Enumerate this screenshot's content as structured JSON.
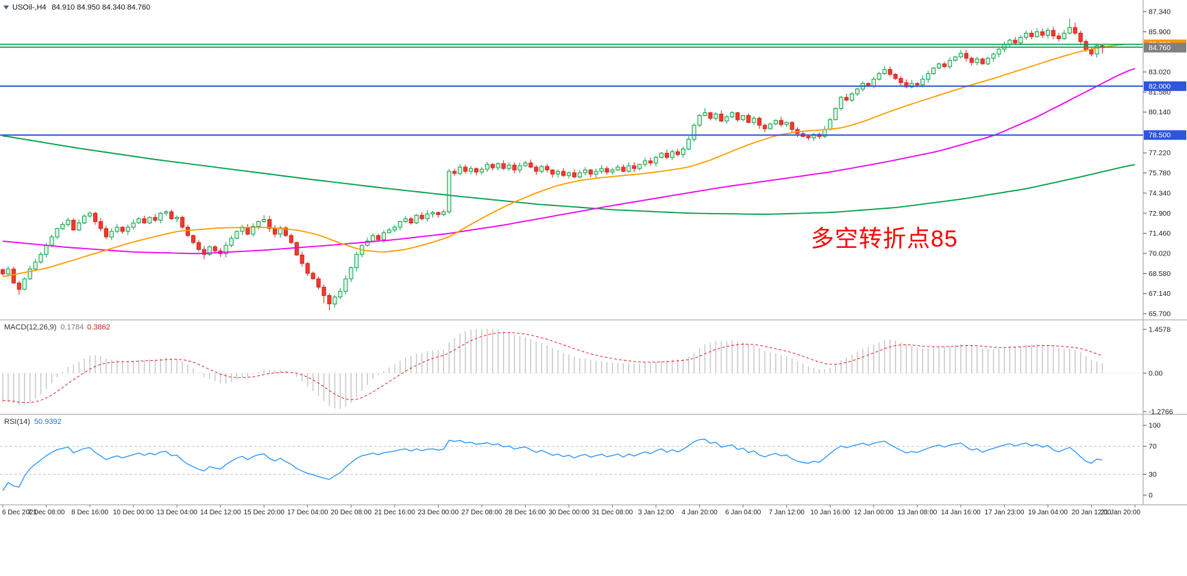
{
  "window": {
    "title_symbol": "USOil-,H4",
    "title_ohlc": "84.910 84.950 84.340 84.760"
  },
  "annotation": {
    "text": "多空转折点85",
    "color": "#ff0000"
  },
  "colors": {
    "bull": "#0aa048",
    "bull_fill": "#ddf5e6",
    "bear": "#d6221c",
    "bear_fill": "#ef3b2d",
    "ma_green": "#00a04a",
    "ma_magenta": "#f000f0",
    "ma_orange": "#ff9d00",
    "macd_hist": "#c4c4c4",
    "macd_signal": "#e02020",
    "rsi_line": "#1e90ff",
    "hline_green": "#00a04a",
    "hline_blue": "#2d55dd",
    "badge_orange": "#ff9500",
    "badge_gray": "#808080",
    "badge_blue": "#2d55dd"
  },
  "price_axis": {
    "ticks": [
      {
        "label": "87.340",
        "price": 87.34
      },
      {
        "label": "85.900",
        "price": 85.9
      },
      {
        "label": "83.020",
        "price": 83.02
      },
      {
        "label": "81.580",
        "price": 81.58
      },
      {
        "label": "80.140",
        "price": 80.14
      },
      {
        "label": "77.220",
        "price": 77.22
      },
      {
        "label": "75.780",
        "price": 75.78
      },
      {
        "label": "74.340",
        "price": 74.34
      },
      {
        "label": "72.900",
        "price": 72.9
      },
      {
        "label": "71.460",
        "price": 71.46
      },
      {
        "label": "70.020",
        "price": 70.02
      },
      {
        "label": "68.580",
        "price": 68.58
      },
      {
        "label": "67.140",
        "price": 67.14
      },
      {
        "label": "65.700",
        "price": 65.7
      }
    ],
    "badges": [
      {
        "text": "85.000",
        "price": 85.0,
        "bg": "#ff9500",
        "fg": "#ffffff"
      },
      {
        "text": "84.760",
        "price": 84.76,
        "bg": "#808080",
        "fg": "#ffffff"
      },
      {
        "text": "82.000",
        "price": 82.0,
        "bg": "#2d55dd",
        "fg": "#ffffff"
      },
      {
        "text": "78.500",
        "price": 78.5,
        "bg": "#2d55dd",
        "fg": "#ffffff"
      }
    ]
  },
  "time_axis": {
    "labels": [
      "6 Dec 2021",
      "7 Dec 08:00",
      "8 Dec 16:00",
      "10 Dec 00:00",
      "13 Dec 04:00",
      "14 Dec 12:00",
      "15 Dec 20:00",
      "17 Dec 04:00",
      "20 Dec 08:00",
      "21 Dec 16:00",
      "23 Dec 00:00",
      "27 Dec 08:00",
      "28 Dec 16:00",
      "30 Dec 00:00",
      "31 Dec 08:00",
      "3 Jan 12:00",
      "4 Jan 20:00",
      "6 Jan 04:00",
      "7 Jan 12:00",
      "10 Jan 16:00",
      "12 Jan 00:00",
      "13 Jan 08:00",
      "14 Jan 16:00",
      "17 Jan 23:00",
      "19 Jan 04:00",
      "20 Jan 12:00",
      "21 Jan 20:00"
    ]
  },
  "indicators": {
    "macd": {
      "label": "MACD(12,26,9)",
      "value_main": "0.1784",
      "value_signal": "0.3862",
      "axis": [
        {
          "label": "1.4578",
          "value": 1.4578
        },
        {
          "label": "0.00",
          "value": 0
        },
        {
          "label": "-1.2766",
          "value": -1.2766
        }
      ],
      "range": [
        -1.2766,
        1.4578
      ]
    },
    "rsi": {
      "label": "RSI(14)",
      "value": "50.9392",
      "axis": [
        {
          "label": "100",
          "value": 100
        },
        {
          "label": "70",
          "value": 70
        },
        {
          "label": "30",
          "value": 30
        },
        {
          "label": "0",
          "value": 0
        }
      ],
      "levels": [
        70,
        30
      ]
    }
  },
  "chart_data": {
    "type": "candlestick+indicators",
    "symbol": "USOil-",
    "timeframe": "H4",
    "current_bar": {
      "open": 84.91,
      "high": 84.95,
      "low": 84.34,
      "close": 84.76
    },
    "price_axis_range": [
      65.7,
      87.34
    ],
    "bars_total_slots": 210,
    "open_first": 68.85,
    "closes": [
      68.55,
      68.9,
      67.9,
      67.45,
      68.2,
      68.9,
      69.4,
      69.95,
      70.6,
      71.2,
      71.8,
      72.1,
      72.4,
      71.7,
      72.2,
      72.7,
      72.9,
      72.3,
      71.8,
      71.2,
      71.6,
      71.9,
      71.6,
      71.9,
      72.2,
      72.5,
      72.2,
      72.6,
      72.4,
      72.9,
      73.0,
      72.5,
      72.6,
      71.9,
      71.3,
      70.8,
      70.3,
      69.95,
      70.5,
      70.2,
      70.0,
      70.6,
      71.1,
      71.6,
      71.9,
      71.4,
      71.95,
      72.3,
      72.45,
      71.8,
      71.4,
      71.85,
      71.3,
      70.8,
      69.9,
      69.3,
      68.6,
      68.2,
      67.6,
      67.0,
      66.4,
      66.9,
      67.3,
      68.2,
      69.0,
      69.95,
      70.6,
      70.9,
      71.3,
      71.0,
      71.5,
      71.7,
      71.9,
      72.3,
      72.5,
      72.2,
      72.75,
      72.5,
      72.85,
      72.95,
      72.8,
      73.0,
      75.9,
      75.75,
      76.2,
      75.9,
      76.1,
      75.85,
      76.05,
      76.4,
      76.15,
      76.45,
      76.1,
      76.35,
      76.0,
      76.3,
      76.5,
      76.2,
      75.9,
      76.25,
      76.0,
      75.7,
      75.9,
      75.6,
      75.8,
      75.5,
      75.8,
      76.0,
      75.7,
      75.9,
      76.1,
      75.85,
      76.0,
      76.2,
      75.9,
      76.3,
      76.1,
      76.4,
      76.65,
      76.5,
      76.9,
      77.2,
      76.9,
      77.3,
      77.1,
      77.5,
      78.2,
      79.2,
      79.9,
      80.1,
      79.7,
      80.0,
      79.5,
      79.8,
      80.1,
      79.6,
      79.9,
      79.4,
      79.7,
      79.2,
      78.95,
      79.3,
      79.55,
      79.25,
      79.4,
      78.9,
      78.6,
      78.4,
      78.3,
      78.55,
      78.4,
      78.9,
      79.6,
      80.4,
      81.2,
      81.0,
      81.45,
      81.8,
      82.2,
      82.0,
      82.5,
      82.9,
      83.2,
      82.85,
      82.55,
      82.25,
      81.95,
      82.2,
      82.1,
      82.5,
      82.9,
      83.3,
      83.6,
      83.4,
      83.85,
      84.1,
      84.35,
      84.0,
      83.7,
      83.95,
      83.6,
      84.0,
      84.3,
      84.65,
      85.0,
      85.3,
      85.1,
      85.5,
      85.8,
      85.55,
      85.9,
      85.65,
      86.0,
      85.6,
      85.4,
      85.8,
      86.2,
      85.8,
      85.2,
      84.6,
      84.3,
      84.9,
      84.76
    ],
    "wick_overrides": {
      "3": {
        "l": 67.05
      },
      "37": {
        "l": 69.6
      },
      "48": {
        "h": 72.75
      },
      "59": {
        "l": 66.45
      },
      "60": {
        "l": 65.95
      },
      "61": {
        "l": 66.15
      },
      "82": {
        "h": 76.05,
        "l": 72.85
      },
      "127": {
        "h": 79.35
      },
      "129": {
        "h": 80.42
      },
      "162": {
        "h": 83.45
      },
      "190": {
        "h": 86.15
      },
      "196": {
        "h": 86.85
      },
      "197": {
        "h": 86.55
      },
      "202": {
        "h": 84.95,
        "l": 84.34
      }
    },
    "hlines": [
      {
        "price": 85.0,
        "color": "#00a04a",
        "width": 1.6
      },
      {
        "price": 84.8,
        "color": "#00a04a",
        "width": 1.6
      },
      {
        "price": 84.76,
        "color": "#9a9a9a",
        "width": 1,
        "dash": "2 2"
      },
      {
        "price": 82.0,
        "color": "#2d55dd",
        "width": 2
      },
      {
        "price": 78.5,
        "color": "#2d55dd",
        "width": 2
      }
    ],
    "ma_green": [
      [
        0,
        78.45
      ],
      [
        14,
        77.55
      ],
      [
        28,
        76.75
      ],
      [
        42,
        76.05
      ],
      [
        56,
        75.35
      ],
      [
        70,
        74.7
      ],
      [
        84,
        74.1
      ],
      [
        98,
        73.55
      ],
      [
        112,
        73.15
      ],
      [
        126,
        72.9
      ],
      [
        140,
        72.82
      ],
      [
        152,
        72.95
      ],
      [
        164,
        73.3
      ],
      [
        176,
        73.9
      ],
      [
        188,
        74.65
      ],
      [
        198,
        75.5
      ],
      [
        204,
        76.05
      ],
      [
        208,
        76.4
      ]
    ],
    "ma_magenta": [
      [
        0,
        70.9
      ],
      [
        12,
        70.45
      ],
      [
        24,
        70.12
      ],
      [
        36,
        70.0
      ],
      [
        48,
        70.25
      ],
      [
        60,
        70.6
      ],
      [
        72,
        71.0
      ],
      [
        82,
        71.45
      ],
      [
        92,
        72.05
      ],
      [
        102,
        72.75
      ],
      [
        112,
        73.45
      ],
      [
        122,
        74.1
      ],
      [
        132,
        74.75
      ],
      [
        142,
        75.3
      ],
      [
        152,
        75.85
      ],
      [
        162,
        76.55
      ],
      [
        172,
        77.35
      ],
      [
        182,
        78.45
      ],
      [
        190,
        79.8
      ],
      [
        196,
        81.0
      ],
      [
        201,
        82.0
      ],
      [
        205,
        82.8
      ],
      [
        208,
        83.3
      ]
    ],
    "ma_orange": [
      [
        0,
        68.35
      ],
      [
        8,
        68.95
      ],
      [
        16,
        69.9
      ],
      [
        24,
        70.85
      ],
      [
        32,
        71.6
      ],
      [
        40,
        71.85
      ],
      [
        48,
        71.9
      ],
      [
        54,
        71.7
      ],
      [
        58,
        71.35
      ],
      [
        62,
        70.75
      ],
      [
        66,
        70.25
      ],
      [
        70,
        70.1
      ],
      [
        74,
        70.3
      ],
      [
        78,
        70.7
      ],
      [
        82,
        71.2
      ],
      [
        86,
        72.1
      ],
      [
        90,
        72.95
      ],
      [
        94,
        73.7
      ],
      [
        98,
        74.35
      ],
      [
        102,
        74.9
      ],
      [
        106,
        75.25
      ],
      [
        110,
        75.45
      ],
      [
        114,
        75.6
      ],
      [
        118,
        75.75
      ],
      [
        122,
        75.95
      ],
      [
        126,
        76.2
      ],
      [
        130,
        76.7
      ],
      [
        134,
        77.35
      ],
      [
        138,
        77.95
      ],
      [
        142,
        78.45
      ],
      [
        146,
        78.75
      ],
      [
        150,
        78.85
      ],
      [
        154,
        79.0
      ],
      [
        158,
        79.45
      ],
      [
        162,
        80.05
      ],
      [
        166,
        80.6
      ],
      [
        170,
        81.1
      ],
      [
        174,
        81.6
      ],
      [
        178,
        82.1
      ],
      [
        182,
        82.55
      ],
      [
        186,
        83.05
      ],
      [
        190,
        83.55
      ],
      [
        194,
        84.05
      ],
      [
        198,
        84.5
      ],
      [
        202,
        84.8
      ],
      [
        206,
        85.0
      ]
    ]
  }
}
